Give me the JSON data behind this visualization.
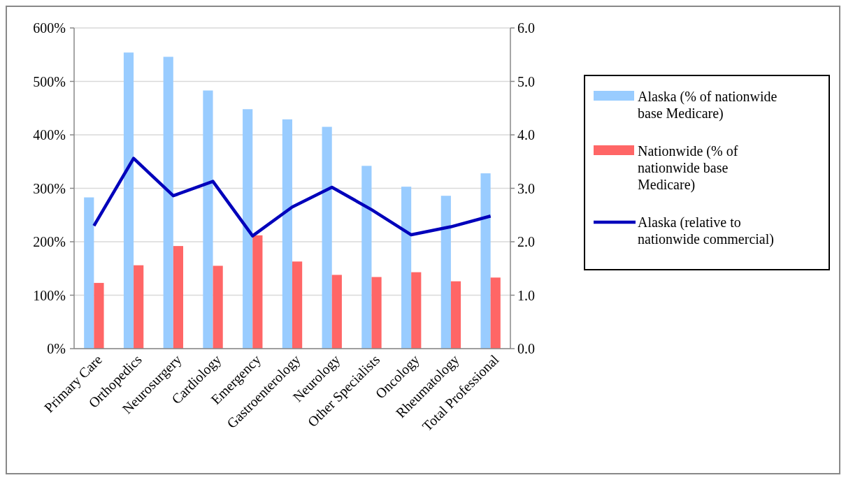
{
  "chart_data": {
    "type": "bar",
    "categories": [
      "Primary Care",
      "Orthopedics",
      "Neurosurgery",
      "Cardiology",
      "Emergency",
      "Gastroenterology",
      "Neurology",
      "Other Specialists",
      "Oncology",
      "Rheumatology",
      "Total Professional"
    ],
    "series": [
      {
        "name": "Alaska (% of nationwide base Medicare)",
        "color": "#99ccff",
        "values": [
          283,
          554,
          546,
          483,
          448,
          429,
          415,
          342,
          303,
          286,
          328
        ]
      },
      {
        "name": "Nationwide (% of nationwide base Medicare)",
        "color": "#ff6666",
        "values": [
          123,
          156,
          192,
          155,
          212,
          163,
          138,
          134,
          143,
          126,
          133
        ]
      },
      {
        "name": "Alaska (relative to nationwide commercial)",
        "color": "#0000bb",
        "type": "line",
        "axis": "y2",
        "values": [
          2.3,
          3.56,
          2.86,
          3.13,
          2.11,
          2.65,
          3.02,
          2.6,
          2.13,
          2.28,
          2.48
        ]
      }
    ],
    "ylim": [
      0,
      600
    ],
    "yticks": [
      {
        "value": 0,
        "label": "0%"
      },
      {
        "value": 100,
        "label": "100%"
      },
      {
        "value": 200,
        "label": "200%"
      },
      {
        "value": 300,
        "label": "300%"
      },
      {
        "value": 400,
        "label": "400%"
      },
      {
        "value": 500,
        "label": "500%"
      },
      {
        "value": 600,
        "label": "600%"
      }
    ],
    "y2lim": [
      0,
      6
    ],
    "y2ticks": [
      {
        "value": 0,
        "label": "0.0"
      },
      {
        "value": 1,
        "label": "1.0"
      },
      {
        "value": 2,
        "label": "2.0"
      },
      {
        "value": 3,
        "label": "3.0"
      },
      {
        "value": 4,
        "label": "4.0"
      },
      {
        "value": 5,
        "label": "5.0"
      },
      {
        "value": 6,
        "label": "6.0"
      }
    ],
    "grid": "y",
    "legend": "right",
    "marker": "none"
  }
}
